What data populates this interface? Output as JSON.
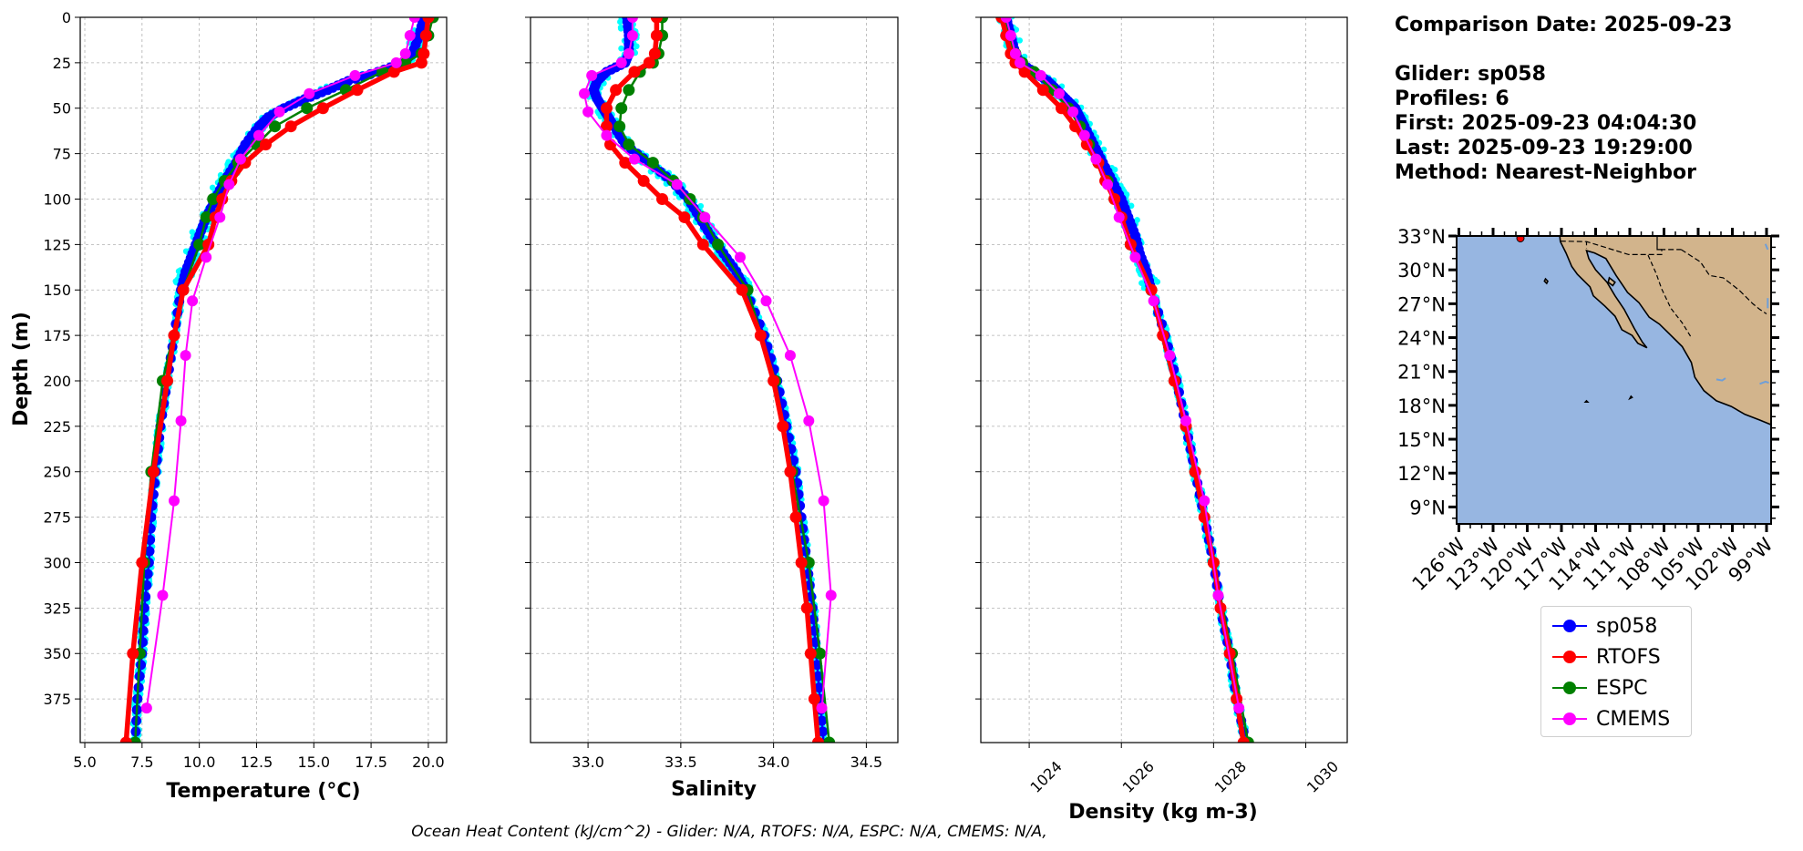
{
  "info": {
    "comparison_date": "Comparison Date: 2025-09-23",
    "glider": "Glider: sp058",
    "profiles": "Profiles: 6",
    "first": "First: 2025-09-23 04:04:30",
    "last": "Last: 2025-09-23 19:29:00",
    "method": "Method: Nearest-Neighbor"
  },
  "footer": "Ocean Heat Content (kJ/cm^2) - Glider: N/A,  RTOFS: N/A,  ESPC: N/A,  CMEMS: N/A,",
  "colors": {
    "sp058": "#0000ff",
    "RTOFS": "#ff0000",
    "ESPC": "#008000",
    "CMEMS": "#ff00ff",
    "glider_raw": "#00ffff",
    "grid": "#b0b0b0",
    "ocean": "#97b6e1",
    "land": "#d2b48c"
  },
  "legend": [
    {
      "label": "sp058",
      "color": "#0000ff"
    },
    {
      "label": "RTOFS",
      "color": "#ff0000"
    },
    {
      "label": "ESPC",
      "color": "#008000"
    },
    {
      "label": "CMEMS",
      "color": "#ff00ff"
    }
  ],
  "chart_data": [
    {
      "type": "line",
      "xlabel": "Temperature (°C)",
      "ylabel": "Depth (m)",
      "xlim": [
        4.8,
        20.8
      ],
      "ylim": [
        399,
        0
      ],
      "xticks": [
        5.0,
        7.5,
        10.0,
        12.5,
        15.0,
        17.5,
        20.0
      ],
      "xtick_labels": [
        "5.0",
        "7.5",
        "10.0",
        "12.5",
        "15.0",
        "17.5",
        "20.0"
      ],
      "yticks": [
        0,
        25,
        50,
        75,
        100,
        125,
        150,
        175,
        200,
        225,
        250,
        275,
        300,
        325,
        350,
        375
      ],
      "ytick_labels": [
        "0",
        "25",
        "50",
        "75",
        "100",
        "125",
        "150",
        "175",
        "200",
        "225",
        "250",
        "275",
        "300",
        "325",
        "350",
        "375"
      ],
      "grid": true,
      "series": [
        {
          "name": "sp058",
          "depth": [
            0,
            10,
            20,
            25,
            30,
            35,
            40,
            45,
            50,
            55,
            60,
            70,
            80,
            90,
            100,
            110,
            120,
            130,
            140,
            150,
            175,
            200,
            225,
            250,
            275,
            300,
            325,
            350,
            375,
            399
          ],
          "values": [
            19.8,
            19.6,
            19.3,
            18.9,
            17.8,
            16.5,
            15.6,
            14.6,
            13.7,
            13.0,
            12.6,
            12.0,
            11.6,
            11.1,
            10.7,
            10.3,
            10.0,
            9.7,
            9.4,
            9.2,
            8.9,
            8.6,
            8.3,
            8.1,
            7.9,
            7.8,
            7.6,
            7.5,
            7.3,
            7.2
          ]
        },
        {
          "name": "RTOFS",
          "depth": [
            0,
            10,
            20,
            25,
            30,
            40,
            50,
            60,
            70,
            80,
            90,
            100,
            110,
            125,
            150,
            175,
            200,
            250,
            300,
            350,
            399
          ],
          "values": [
            20.0,
            19.9,
            19.8,
            19.7,
            18.5,
            16.9,
            15.4,
            14.0,
            12.9,
            12.0,
            11.4,
            11.0,
            10.7,
            10.4,
            9.3,
            8.9,
            8.6,
            8.0,
            7.5,
            7.1,
            6.8
          ]
        },
        {
          "name": "ESPC",
          "depth": [
            0,
            10,
            20,
            25,
            30,
            40,
            50,
            60,
            70,
            80,
            90,
            100,
            110,
            125,
            150,
            200,
            250,
            300,
            350,
            399
          ],
          "values": [
            20.2,
            20.0,
            19.7,
            19.0,
            18.0,
            16.4,
            14.7,
            13.3,
            12.5,
            11.7,
            11.1,
            10.6,
            10.3,
            10.0,
            9.3,
            8.4,
            7.9,
            7.6,
            7.4,
            7.2
          ]
        },
        {
          "name": "CMEMS",
          "depth": [
            0,
            10,
            20,
            25,
            32,
            42,
            52,
            65,
            78,
            92,
            110,
            132,
            156,
            186,
            222,
            266,
            318,
            380
          ],
          "values": [
            19.4,
            19.2,
            19.0,
            18.6,
            16.8,
            14.8,
            13.5,
            12.6,
            11.8,
            11.3,
            10.9,
            10.3,
            9.7,
            9.4,
            9.2,
            8.9,
            8.4,
            7.7
          ]
        }
      ]
    },
    {
      "type": "line",
      "xlabel": "Salinity",
      "xlim": [
        32.69,
        34.67
      ],
      "ylim": [
        399,
        0
      ],
      "xticks": [
        33.0,
        33.5,
        34.0,
        34.5
      ],
      "xtick_labels": [
        "33.0",
        "33.5",
        "34.0",
        "34.5"
      ],
      "yticks": [
        0,
        25,
        50,
        75,
        100,
        125,
        150,
        175,
        200,
        225,
        250,
        275,
        300,
        325,
        350,
        375
      ],
      "grid": true,
      "series": [
        {
          "name": "sp058",
          "depth": [
            0,
            10,
            20,
            25,
            30,
            35,
            40,
            45,
            50,
            55,
            60,
            70,
            80,
            90,
            100,
            110,
            120,
            130,
            140,
            150,
            175,
            200,
            225,
            250,
            275,
            300,
            325,
            350,
            375,
            399
          ],
          "values": [
            33.21,
            33.22,
            33.22,
            33.2,
            33.1,
            33.05,
            33.03,
            33.05,
            33.08,
            33.11,
            33.14,
            33.2,
            33.33,
            33.45,
            33.54,
            33.6,
            33.66,
            33.73,
            33.8,
            33.85,
            33.95,
            34.02,
            34.07,
            34.12,
            34.15,
            34.18,
            34.21,
            34.23,
            34.25,
            34.27
          ]
        },
        {
          "name": "RTOFS",
          "depth": [
            0,
            10,
            20,
            25,
            30,
            40,
            50,
            60,
            70,
            80,
            90,
            100,
            110,
            125,
            150,
            175,
            200,
            225,
            250,
            275,
            300,
            325,
            350,
            375,
            399
          ],
          "values": [
            33.37,
            33.37,
            33.36,
            33.33,
            33.25,
            33.15,
            33.1,
            33.1,
            33.12,
            33.2,
            33.3,
            33.4,
            33.52,
            33.62,
            33.83,
            33.93,
            34.0,
            34.05,
            34.09,
            34.12,
            34.15,
            34.18,
            34.2,
            34.22,
            34.24
          ]
        },
        {
          "name": "ESPC",
          "depth": [
            0,
            10,
            20,
            25,
            30,
            40,
            50,
            60,
            70,
            80,
            90,
            100,
            110,
            125,
            150,
            200,
            250,
            300,
            350,
            399
          ],
          "values": [
            33.4,
            33.4,
            33.38,
            33.35,
            33.28,
            33.22,
            33.18,
            33.17,
            33.22,
            33.35,
            33.46,
            33.55,
            33.62,
            33.7,
            33.86,
            34.01,
            34.1,
            34.19,
            34.25,
            34.3
          ]
        },
        {
          "name": "CMEMS",
          "depth": [
            0,
            10,
            20,
            25,
            32,
            42,
            52,
            65,
            78,
            92,
            110,
            132,
            156,
            186,
            222,
            266,
            318,
            380
          ],
          "values": [
            33.24,
            33.24,
            33.22,
            33.18,
            33.02,
            32.98,
            33.0,
            33.1,
            33.25,
            33.48,
            33.63,
            33.82,
            33.96,
            34.09,
            34.19,
            34.27,
            34.31,
            34.26
          ]
        }
      ]
    },
    {
      "type": "line",
      "xlabel": "Density (kg m-3)",
      "xlim": [
        1022.95,
        1030.9
      ],
      "ylim": [
        399,
        0
      ],
      "xticks": [
        1024,
        1026,
        1028,
        1030
      ],
      "xtick_labels": [
        "1024",
        "1026",
        "1028",
        "1030"
      ],
      "yticks": [
        0,
        25,
        50,
        75,
        100,
        125,
        150,
        175,
        200,
        225,
        250,
        275,
        300,
        325,
        350,
        375
      ],
      "grid": true,
      "series": [
        {
          "name": "sp058",
          "depth": [
            0,
            10,
            20,
            25,
            30,
            35,
            40,
            45,
            50,
            55,
            60,
            70,
            80,
            90,
            100,
            110,
            120,
            130,
            140,
            150,
            175,
            200,
            225,
            250,
            275,
            300,
            325,
            350,
            375,
            399
          ],
          "values": [
            1023.5,
            1023.6,
            1023.7,
            1023.8,
            1024.1,
            1024.4,
            1024.6,
            1024.8,
            1025.0,
            1025.1,
            1025.2,
            1025.4,
            1025.6,
            1025.8,
            1026.0,
            1026.15,
            1026.3,
            1026.4,
            1026.55,
            1026.65,
            1026.95,
            1027.2,
            1027.4,
            1027.6,
            1027.8,
            1028.0,
            1028.15,
            1028.35,
            1028.5,
            1028.7
          ]
        },
        {
          "name": "RTOFS",
          "depth": [
            0,
            10,
            20,
            25,
            30,
            40,
            50,
            60,
            70,
            80,
            90,
            100,
            110,
            125,
            150,
            175,
            200,
            225,
            250,
            275,
            300,
            325,
            350,
            375,
            399
          ],
          "values": [
            1023.4,
            1023.5,
            1023.6,
            1023.7,
            1023.9,
            1024.3,
            1024.7,
            1025.0,
            1025.25,
            1025.5,
            1025.65,
            1025.85,
            1026.0,
            1026.2,
            1026.65,
            1026.9,
            1027.15,
            1027.4,
            1027.6,
            1027.8,
            1028.0,
            1028.15,
            1028.35,
            1028.5,
            1028.65
          ]
        },
        {
          "name": "ESPC",
          "depth": [
            0,
            10,
            20,
            25,
            30,
            40,
            50,
            60,
            70,
            80,
            90,
            100,
            110,
            125,
            150,
            200,
            250,
            300,
            350,
            399
          ],
          "values": [
            1023.45,
            1023.55,
            1023.7,
            1023.85,
            1024.1,
            1024.5,
            1024.85,
            1025.1,
            1025.3,
            1025.5,
            1025.7,
            1025.85,
            1026.0,
            1026.2,
            1026.65,
            1027.15,
            1027.6,
            1028.0,
            1028.4,
            1028.75
          ]
        },
        {
          "name": "CMEMS",
          "depth": [
            0,
            10,
            20,
            25,
            32,
            42,
            52,
            65,
            78,
            92,
            110,
            132,
            156,
            186,
            222,
            266,
            318,
            380
          ],
          "values": [
            1023.5,
            1023.6,
            1023.7,
            1023.8,
            1024.25,
            1024.65,
            1024.95,
            1025.2,
            1025.45,
            1025.7,
            1025.95,
            1026.3,
            1026.7,
            1027.05,
            1027.4,
            1027.8,
            1028.1,
            1028.55
          ]
        }
      ]
    },
    {
      "type": "map",
      "lat_ticks": [
        "9°N",
        "12°N",
        "15°N",
        "18°N",
        "21°N",
        "24°N",
        "27°N",
        "30°N",
        "33°N"
      ],
      "lon_ticks": [
        "126°W",
        "123°W",
        "120°W",
        "117°W",
        "114°W",
        "111°W",
        "108°W",
        "105°W",
        "102°W",
        "99°W"
      ],
      "lat_range": [
        7.5,
        33
      ],
      "lon_range": [
        -126.2,
        -98.6
      ],
      "glider_position": {
        "lat": 32.8,
        "lon": -120.6
      }
    }
  ]
}
